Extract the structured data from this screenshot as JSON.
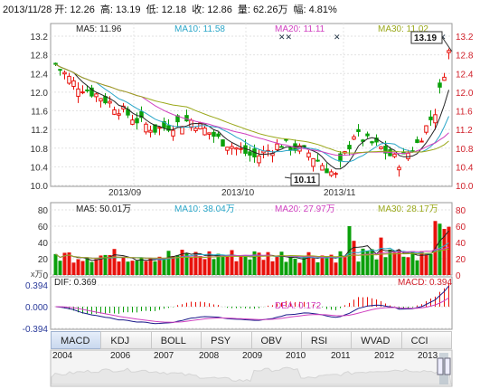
{
  "header": {
    "date": "2013/11/28",
    "open_label": "开:",
    "open": "12.26",
    "high_label": "高:",
    "high": "13.19",
    "low_label": "低:",
    "low": "12.18",
    "close_label": "收:",
    "close": "12.86",
    "volume_label": "量:",
    "volume": "62.26万",
    "change_label": "幅:",
    "change": "4.81%"
  },
  "price_panel": {
    "ma5": "MA5: 11.96",
    "ma10": "MA10: 11.58",
    "ma20": "MA20: 11.11",
    "ma30": "MA30: 11.02",
    "high_marker": "13.19",
    "low_marker": "10.11",
    "y_ticks": [
      "13.2",
      "12.8",
      "12.4",
      "12.0",
      "11.6",
      "11.2",
      "10.8",
      "10.4",
      "10.0"
    ],
    "x_labels": [
      "2013/09",
      "2013/10",
      "2013/11"
    ]
  },
  "volume_panel": {
    "ma5": "MA5: 50.01万",
    "ma10": "MA10: 38.04万",
    "ma20": "MA20: 27.97万",
    "ma30": "MA30: 28.17万",
    "y_ticks": [
      "80",
      "60",
      "40",
      "20",
      "0"
    ],
    "unit": "x万"
  },
  "macd_panel": {
    "dif": "DIF: 0.369",
    "dea": "DEA: 0.172",
    "macd": "MACD: 0.394",
    "y_ticks": [
      "0.394",
      "0.000",
      "-0.394"
    ]
  },
  "tabs": [
    "MACD",
    "KDJ",
    "BOLL",
    "PSY",
    "OBV",
    "RSI",
    "WVAD",
    "CCI"
  ],
  "timeline": {
    "years": [
      "2004",
      "2006",
      "2007",
      "2008",
      "2009",
      "2010",
      "2011",
      "2012",
      "2013"
    ]
  },
  "colors": {
    "up": "#e8120c",
    "down": "#0aa00a",
    "ma5": "#222222",
    "ma10": "#2aa6c8",
    "ma20": "#d040c0",
    "ma30": "#9aa81a",
    "dea": "#d040c0"
  },
  "chart_data": [
    {
      "type": "candlestick",
      "title": "",
      "ylim": [
        10.0,
        13.2
      ],
      "summary": {
        "last_close": 12.86,
        "period_high": 13.19,
        "period_low": 10.11
      },
      "x_labels": [
        "2013/09",
        "2013/10",
        "2013/11"
      ],
      "moving_averages": {
        "MA5": 11.96,
        "MA10": 11.58,
        "MA20": 11.11,
        "MA30": 11.02
      }
    },
    {
      "type": "bar",
      "title": "",
      "ylim": [
        0,
        80
      ],
      "moving_averages": {
        "MA5": 50.01,
        "MA10": 38.04,
        "MA20": 27.97,
        "MA30": 28.17
      }
    },
    {
      "type": "line",
      "title": "",
      "ylim": [
        -0.394,
        0.394
      ],
      "series": [
        {
          "name": "DIF",
          "last": 0.369
        },
        {
          "name": "DEA",
          "last": 0.172
        },
        {
          "name": "MACD",
          "last": 0.394
        }
      ]
    }
  ]
}
